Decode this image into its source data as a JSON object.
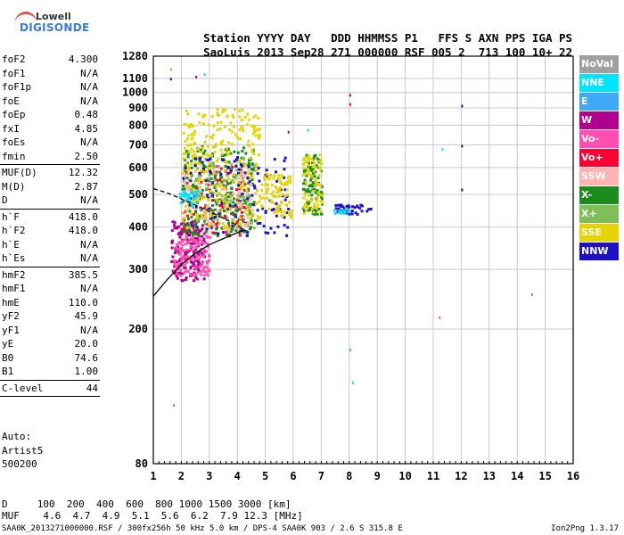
{
  "logo": {
    "line1": "Lowell",
    "line2": "DIGISONDE"
  },
  "header": {
    "labels": [
      "Station",
      "YYYY",
      "DAY",
      "DDD",
      "HHMMSS",
      "P1",
      "FFS",
      "S",
      "AXN",
      "PPS",
      "IGA",
      "PS"
    ],
    "values": [
      "SaoLuis",
      "2013",
      "Sep28",
      "271",
      "000000",
      "RSF",
      "005",
      "2",
      "713",
      "100",
      "10+",
      "22"
    ]
  },
  "params": [
    {
      "key": "foF2",
      "value": "4.300"
    },
    {
      "key": "foF1",
      "value": "N/A"
    },
    {
      "key": "foF1p",
      "value": "N/A"
    },
    {
      "key": "foE",
      "value": "N/A"
    },
    {
      "key": "foEp",
      "value": "0.48"
    },
    {
      "key": "fxI",
      "value": "4.85"
    },
    {
      "key": "foEs",
      "value": "N/A"
    },
    {
      "key": "fmin",
      "value": "2.50"
    },
    {
      "sep": true
    },
    {
      "key": "MUF(D)",
      "value": "12.32"
    },
    {
      "key": "M(D)",
      "value": "2.87"
    },
    {
      "key": "D",
      "value": "N/A"
    },
    {
      "sep": true
    },
    {
      "key": "h`F",
      "value": "418.0"
    },
    {
      "key": "h`F2",
      "value": "418.0"
    },
    {
      "key": "h`E",
      "value": "N/A"
    },
    {
      "key": "h`Es",
      "value": "N/A"
    },
    {
      "sep": true
    },
    {
      "key": "hmF2",
      "value": "385.5"
    },
    {
      "key": "hmF1",
      "value": "N/A"
    },
    {
      "key": "hmE",
      "value": "110.0"
    },
    {
      "key": "yF2",
      "value": "45.9"
    },
    {
      "key": "yF1",
      "value": "N/A"
    },
    {
      "key": "yE",
      "value": "20.0"
    },
    {
      "key": "B0",
      "value": "74.6"
    },
    {
      "key": "B1",
      "value": "1.00"
    },
    {
      "sep": true
    },
    {
      "key": "C-level",
      "value": "44"
    },
    {
      "sep": true
    }
  ],
  "autoscale": [
    "Auto:",
    "Artist5",
    "500200"
  ],
  "footer": {
    "d_line": "D     100  200  400  600  800 1000 1500 3000 [km]",
    "muf_line": "MUF    4.6  4.7  4.9  5.1  5.6  6.2  7.9 12.3 [MHz]",
    "info_line": "SAA0K_2013271000000.RSF / 300fx256h 50 kHz 5.0 km / DPS-4 SAA0K 903 / 2.6 S 315.8 E",
    "version": "Ion2Png 1.3.17"
  },
  "legend": [
    {
      "label": "NoVal",
      "color": "#a0a0a0"
    },
    {
      "label": "NNE",
      "color": "#00e5ff"
    },
    {
      "label": "E",
      "color": "#3fa9f5"
    },
    {
      "label": "W",
      "color": "#b0008f"
    },
    {
      "label": "Vo-",
      "color": "#ff4fb0"
    },
    {
      "label": "Vo+",
      "color": "#ff0033"
    },
    {
      "label": "SSW",
      "color": "#ffb3b3"
    },
    {
      "label": "X-",
      "color": "#1a8c1a"
    },
    {
      "label": "X+",
      "color": "#7fbf5a"
    },
    {
      "label": "SSE",
      "color": "#e6d400"
    },
    {
      "label": "NNW",
      "color": "#1f10c8"
    }
  ],
  "chart_data": {
    "type": "scatter",
    "title": "",
    "xlabel": "",
    "ylabel": "",
    "xlim": [
      1,
      16
    ],
    "ylim": [
      80,
      1280
    ],
    "y_scale": "log",
    "x_ticks": [
      1,
      2,
      3,
      4,
      5,
      6,
      7,
      8,
      9,
      10,
      11,
      12,
      13,
      14,
      15,
      16
    ],
    "y_ticks": [
      80,
      200,
      300,
      400,
      500,
      600,
      700,
      800,
      900,
      1000,
      1100,
      1280
    ],
    "grid": true,
    "legend_position": "right",
    "clusters": [
      {
        "name": "W",
        "color": "#b0008f",
        "f": [
          1.6,
          2.8
        ],
        "h": [
          280,
          420
        ],
        "n": 180
      },
      {
        "name": "Vo-",
        "color": "#ff4fb0",
        "f": [
          1.7,
          3.0
        ],
        "h": [
          290,
          380
        ],
        "n": 120
      },
      {
        "name": "Vo+",
        "color": "#ff0033",
        "f": [
          2.0,
          4.3
        ],
        "h": [
          380,
          620
        ],
        "n": 130
      },
      {
        "name": "X-",
        "color": "#1a8c1a",
        "f": [
          2.0,
          4.6
        ],
        "h": [
          380,
          700
        ],
        "n": 260
      },
      {
        "name": "X+",
        "color": "#7fbf5a",
        "f": [
          2.2,
          4.6
        ],
        "h": [
          400,
          650
        ],
        "n": 120
      },
      {
        "name": "SSE",
        "color": "#e6d400",
        "f": [
          2.0,
          4.8
        ],
        "h": [
          400,
          900
        ],
        "n": 300
      },
      {
        "name": "NNW",
        "color": "#1f10c8",
        "f": [
          2.0,
          5.8
        ],
        "h": [
          380,
          650
        ],
        "n": 120
      },
      {
        "name": "SSW",
        "color": "#ffb3b3",
        "f": [
          2.0,
          4.5
        ],
        "h": [
          380,
          600
        ],
        "n": 60
      },
      {
        "name": "NNE",
        "color": "#00e5ff",
        "f": [
          1.9,
          2.6
        ],
        "h": [
          470,
          520
        ],
        "n": 30
      },
      {
        "name": "SSE",
        "color": "#e6d400",
        "f": [
          4.8,
          5.9
        ],
        "h": [
          430,
          580
        ],
        "n": 90
      },
      {
        "name": "X-",
        "color": "#1a8c1a",
        "f": [
          6.3,
          7.0
        ],
        "h": [
          440,
          660
        ],
        "n": 90
      },
      {
        "name": "SSE",
        "color": "#e6d400",
        "f": [
          6.3,
          7.0
        ],
        "h": [
          440,
          660
        ],
        "n": 70
      },
      {
        "name": "NNW",
        "color": "#1f10c8",
        "f": [
          7.4,
          8.8
        ],
        "h": [
          440,
          470
        ],
        "n": 40
      },
      {
        "name": "NNE",
        "color": "#00e5ff",
        "f": [
          7.4,
          8.0
        ],
        "h": [
          440,
          460
        ],
        "n": 12
      }
    ],
    "sparse_points": [
      {
        "f": 1.6,
        "h": 1180,
        "color": "#7fbf5a"
      },
      {
        "f": 1.6,
        "h": 1105,
        "color": "#1f10c8"
      },
      {
        "f": 2.5,
        "h": 1120,
        "color": "#b0008f"
      },
      {
        "f": 2.8,
        "h": 1140,
        "color": "#00e5ff"
      },
      {
        "f": 8.0,
        "h": 990,
        "color": "#b0008f"
      },
      {
        "f": 8.0,
        "h": 930,
        "color": "#ff0033"
      },
      {
        "f": 12.0,
        "h": 920,
        "color": "#1f10c8"
      },
      {
        "f": 12.0,
        "h": 700,
        "color": "#1f10c8"
      },
      {
        "f": 12.0,
        "h": 520,
        "color": "#1f10c8"
      },
      {
        "f": 11.3,
        "h": 685,
        "color": "#00e5ff"
      },
      {
        "f": 11.2,
        "h": 218,
        "color": "#ff4fb0"
      },
      {
        "f": 14.5,
        "h": 255,
        "color": "#3fa9f5"
      },
      {
        "f": 8.0,
        "h": 175,
        "color": "#3fa9f5"
      },
      {
        "f": 8.1,
        "h": 140,
        "color": "#00e5ff"
      },
      {
        "f": 1.7,
        "h": 120,
        "color": "#3fa9f5"
      },
      {
        "f": 5.8,
        "h": 770,
        "color": "#b0008f"
      },
      {
        "f": 6.5,
        "h": 780,
        "color": "#00e5ff"
      }
    ],
    "trace_lines": [
      {
        "name": "o-trace",
        "points": [
          [
            1.0,
            250
          ],
          [
            1.5,
            280
          ],
          [
            2.0,
            310
          ],
          [
            2.5,
            335
          ],
          [
            3.0,
            355
          ],
          [
            3.5,
            370
          ],
          [
            4.0,
            385
          ],
          [
            4.3,
            392
          ]
        ]
      },
      {
        "name": "profile-dashed",
        "dashed": true,
        "points": [
          [
            1.0,
            520
          ],
          [
            1.5,
            505
          ],
          [
            2.0,
            485
          ],
          [
            2.5,
            465
          ],
          [
            3.0,
            445
          ],
          [
            3.5,
            425
          ],
          [
            4.0,
            405
          ],
          [
            4.3,
            390
          ]
        ]
      }
    ]
  }
}
